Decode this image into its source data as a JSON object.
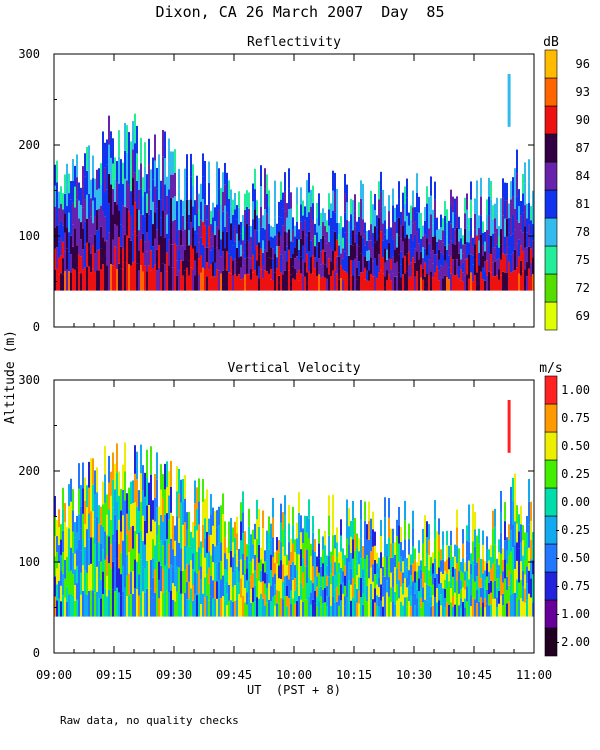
{
  "chart_data": [
    {
      "type": "heatmap",
      "title": "Reflectivity",
      "ylim": [
        0,
        300
      ],
      "yticks": [
        0,
        100,
        200,
        300
      ],
      "data_altitude_range": [
        40,
        280
      ],
      "colorbar": {
        "unit": "dB",
        "levels": [
          "69",
          "72",
          "75",
          "78",
          "81",
          "84",
          "87",
          "90",
          "93",
          "96"
        ],
        "colors": [
          "#ddff00",
          "#55dd00",
          "#22ee99",
          "#33bbee",
          "#1133ee",
          "#6622aa",
          "#330044",
          "#ee1111",
          "#ff6600",
          "#ffbb00"
        ]
      }
    },
    {
      "type": "heatmap",
      "title": "Vertical Velocity",
      "ylim": [
        0,
        300
      ],
      "yticks": [
        0,
        100,
        200,
        300
      ],
      "data_altitude_range": [
        40,
        280
      ],
      "colorbar": {
        "unit": "m/s",
        "levels": [
          "-2.00",
          "-1.00",
          "-0.75",
          "-0.50",
          "-0.25",
          "0.00",
          "0.25",
          "0.50",
          "0.75",
          "1.00"
        ],
        "colors": [
          "#220022",
          "#660099",
          "#2222dd",
          "#2277ff",
          "#11aaee",
          "#00ddaa",
          "#44ee00",
          "#eeee00",
          "#ff9900",
          "#ff2222"
        ]
      }
    }
  ],
  "figure": {
    "title": "Dixon, CA 26 March 2007  Day  85",
    "ylabel": "Altitude (m)",
    "xlabel": "UT  (PST + 8)",
    "xticks": [
      "09:00",
      "09:15",
      "09:30",
      "09:45",
      "10:00",
      "10:15",
      "10:30",
      "10:45",
      "11:00"
    ],
    "note": "Raw data, no quality checks"
  }
}
